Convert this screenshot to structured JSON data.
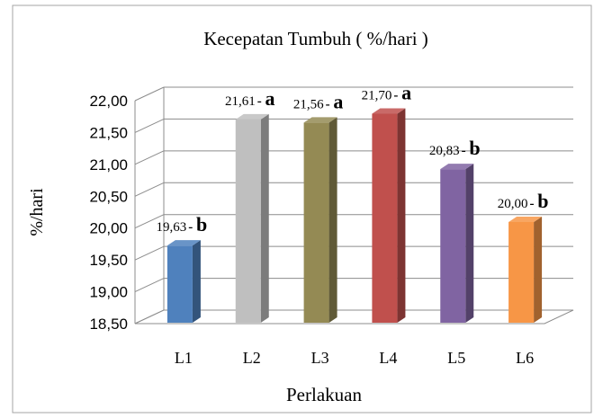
{
  "chart_data": {
    "type": "bar",
    "title": "Kecepatan Tumbuh ( %/hari )",
    "xlabel": "Perlakuan",
    "ylabel": "%/hari",
    "categories": [
      "L1",
      "L2",
      "L3",
      "L4",
      "L5",
      "L6"
    ],
    "values": [
      19.63,
      21.61,
      21.56,
      21.7,
      20.83,
      20.0
    ],
    "value_labels": [
      "19,63",
      "21,61",
      "21,56",
      "21,70",
      "20,83",
      "20,00"
    ],
    "significance_letters": [
      "b",
      "a",
      "a",
      "a",
      "b",
      "b"
    ],
    "ylim": [
      18.5,
      22.0
    ],
    "yticks": [
      18.5,
      19.0,
      19.5,
      20.0,
      20.5,
      21.0,
      21.5,
      22.0
    ],
    "ytick_labels": [
      "18,50",
      "19,00",
      "19,50",
      "20,00",
      "20,50",
      "21,00",
      "21,50",
      "22,00"
    ],
    "bar_colors": [
      "#4f81bd",
      "#bfbfbf",
      "#948a54",
      "#c0504d",
      "#8064a2",
      "#f79646"
    ],
    "grid": true,
    "style": "3d-column",
    "legend": "none"
  }
}
